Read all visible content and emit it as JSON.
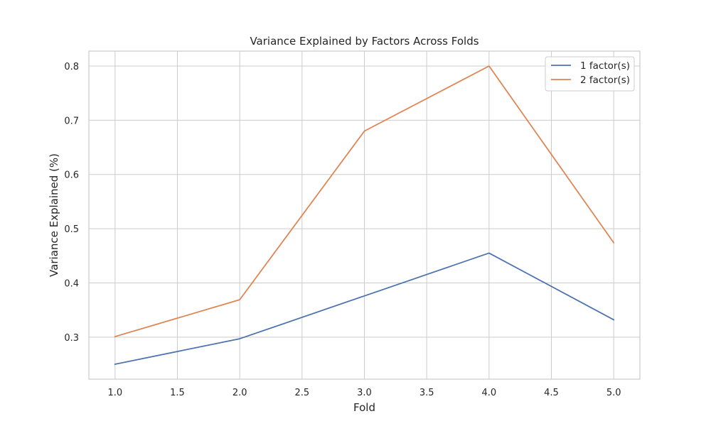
{
  "chart_data": {
    "type": "line",
    "title": "Variance Explained by Factors Across Folds",
    "xlabel": "Fold",
    "ylabel": "Variance Explained (%)",
    "x": [
      1,
      2,
      3,
      4,
      5
    ],
    "series": [
      {
        "name": "1 factor(s)",
        "values": [
          0.25,
          0.297,
          0.376,
          0.455,
          0.332
        ],
        "color": "#4c72b0"
      },
      {
        "name": "2 factor(s)",
        "values": [
          0.301,
          0.369,
          0.68,
          0.8,
          0.474
        ],
        "color": "#dd8452"
      }
    ],
    "xlim": [
      0.79,
      5.21
    ],
    "ylim": [
      0.2225,
      0.8275
    ],
    "xticks": [
      1.0,
      1.5,
      2.0,
      2.5,
      3.0,
      3.5,
      4.0,
      4.5,
      5.0
    ],
    "xtick_labels": [
      "1.0",
      "1.5",
      "2.0",
      "2.5",
      "3.0",
      "3.5",
      "4.0",
      "4.5",
      "5.0"
    ],
    "yticks": [
      0.3,
      0.4,
      0.5,
      0.6,
      0.7,
      0.8
    ],
    "ytick_labels": [
      "0.3",
      "0.4",
      "0.5",
      "0.6",
      "0.7",
      "0.8"
    ],
    "grid": true,
    "legend_position": "top-right"
  }
}
